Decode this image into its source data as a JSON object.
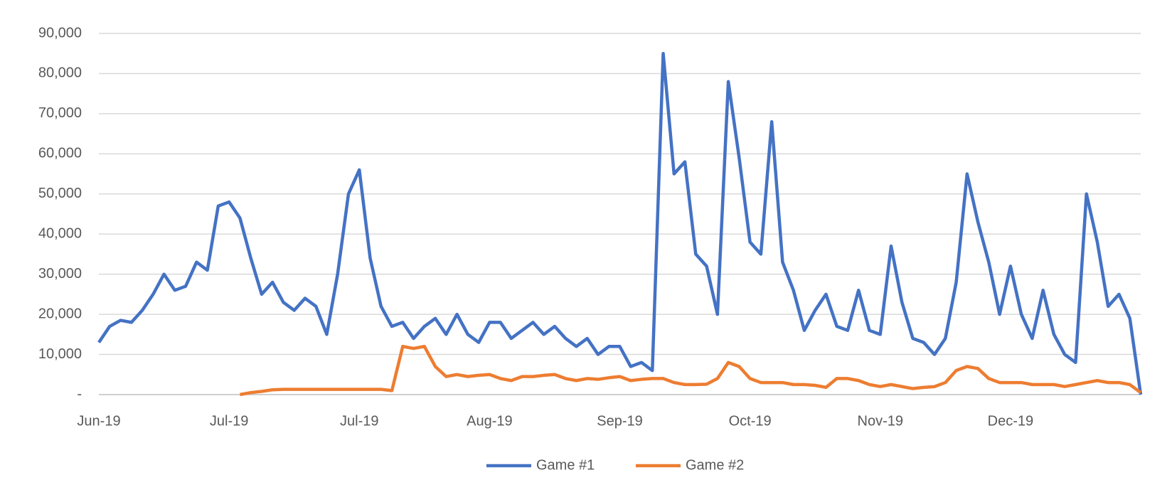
{
  "chart_data": {
    "type": "line",
    "categories": [
      "Jun-19",
      null,
      null,
      null,
      null,
      null,
      null,
      null,
      null,
      null,
      null,
      null,
      "Jul-19",
      null,
      null,
      null,
      null,
      null,
      null,
      null,
      null,
      null,
      null,
      null,
      "Jul-19",
      null,
      null,
      null,
      null,
      null,
      null,
      null,
      null,
      null,
      null,
      null,
      "Aug-19",
      null,
      null,
      null,
      null,
      null,
      null,
      null,
      null,
      null,
      null,
      null,
      "Sep-19",
      null,
      null,
      null,
      null,
      null,
      null,
      null,
      null,
      null,
      null,
      null,
      "Oct-19",
      null,
      null,
      null,
      null,
      null,
      null,
      null,
      null,
      null,
      null,
      null,
      "Nov-19",
      null,
      null,
      null,
      null,
      null,
      null,
      null,
      null,
      null,
      null,
      null,
      "Dec-19",
      null,
      null,
      null,
      null,
      null,
      null,
      null,
      null,
      null,
      null,
      null,
      null
    ],
    "series": [
      {
        "name": "Game #1",
        "color": "#4472c4",
        "values": [
          13000,
          17000,
          18500,
          18000,
          21000,
          25000,
          30000,
          26000,
          27000,
          33000,
          31000,
          47000,
          48000,
          44000,
          34000,
          25000,
          28000,
          23000,
          21000,
          24000,
          22000,
          15000,
          30000,
          50000,
          56000,
          34000,
          22000,
          17000,
          18000,
          14000,
          17000,
          19000,
          15000,
          20000,
          15000,
          13000,
          18000,
          18000,
          14000,
          16000,
          18000,
          15000,
          17000,
          14000,
          12000,
          14000,
          10000,
          12000,
          12000,
          7000,
          8000,
          6000,
          85000,
          55000,
          58000,
          35000,
          32000,
          20000,
          78000,
          59000,
          38000,
          35000,
          68000,
          33000,
          26000,
          16000,
          21000,
          25000,
          17000,
          16000,
          26000,
          16000,
          15000,
          37000,
          23000,
          14000,
          13000,
          10000,
          14000,
          28000,
          55000,
          43000,
          33000,
          20000,
          32000,
          20000,
          14000,
          26000,
          15000,
          10000,
          8000,
          50000,
          38000,
          22000,
          25000,
          19000,
          0
        ]
      },
      {
        "name": "Game #2",
        "color": "#ed7d31",
        "values": [
          null,
          null,
          null,
          null,
          null,
          null,
          null,
          null,
          null,
          null,
          null,
          null,
          null,
          0,
          500,
          800,
          1200,
          1300,
          1300,
          1300,
          1300,
          1300,
          1300,
          1300,
          1300,
          1300,
          1300,
          1000,
          12000,
          11500,
          12000,
          7000,
          4500,
          5000,
          4500,
          4800,
          5000,
          4000,
          3500,
          4500,
          4500,
          4800,
          5000,
          4000,
          3500,
          4000,
          3800,
          4200,
          4500,
          3500,
          3800,
          4000,
          4000,
          3000,
          2500,
          2500,
          2600,
          4000,
          8000,
          7000,
          4000,
          3000,
          3000,
          3000,
          2500,
          2500,
          2300,
          1800,
          4000,
          4000,
          3500,
          2500,
          2000,
          2500,
          2000,
          1500,
          1800,
          2000,
          3000,
          6000,
          7000,
          6500,
          4000,
          3000,
          3000,
          3000,
          2500,
          2500,
          2500,
          2000,
          2500,
          3000,
          3500,
          3000,
          3000,
          2500,
          500
        ]
      }
    ],
    "ylim": [
      0,
      90000
    ],
    "yticks": [
      {
        "value": 0,
        "label": "-"
      },
      {
        "value": 10000,
        "label": "10,000"
      },
      {
        "value": 20000,
        "label": "20,000"
      },
      {
        "value": 30000,
        "label": "30,000"
      },
      {
        "value": 40000,
        "label": "40,000"
      },
      {
        "value": 50000,
        "label": "50,000"
      },
      {
        "value": 60000,
        "label": "60,000"
      },
      {
        "value": 70000,
        "label": "70,000"
      },
      {
        "value": 80000,
        "label": "80,000"
      },
      {
        "value": 90000,
        "label": "90,000"
      }
    ],
    "grid": true,
    "legend": "bottom"
  }
}
